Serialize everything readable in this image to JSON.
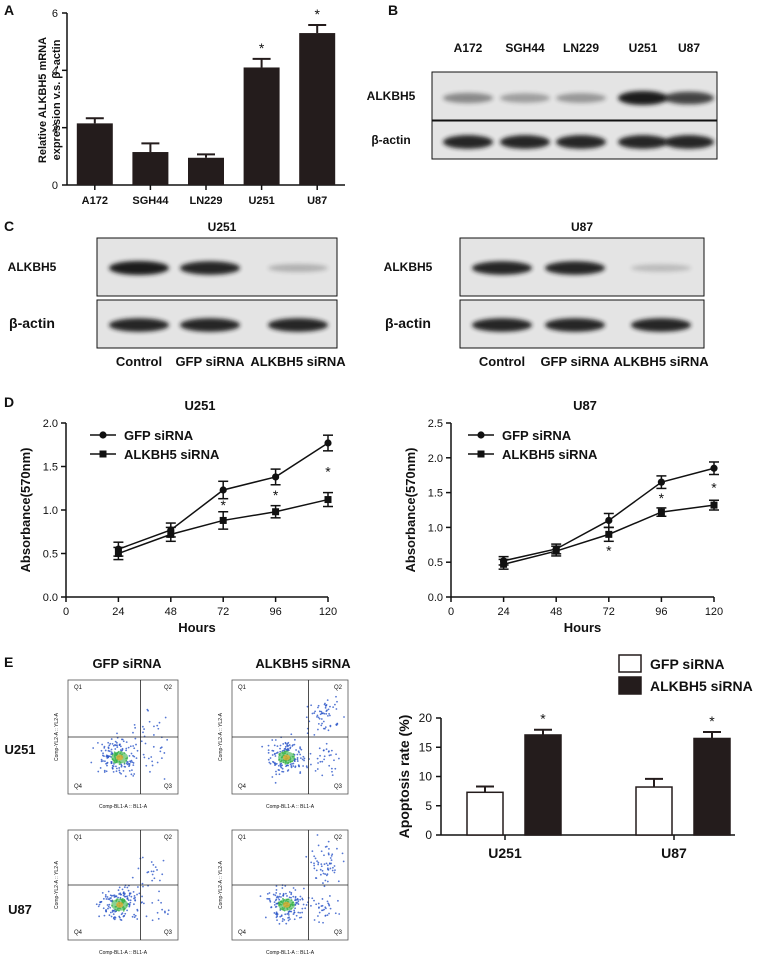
{
  "panels": {
    "a": "A",
    "b": "B",
    "c": "C",
    "d": "D",
    "e": "E"
  },
  "colors": {
    "bar_dark": "#241c1c",
    "blot_bg": "#e4e4e4",
    "band": "#1e1e1e",
    "flow_dot1": "#2b55c8",
    "flow_dot2": "#39b24a",
    "flow_dot3": "#f0a52a"
  },
  "chart_data": [
    {
      "id": "A",
      "type": "bar",
      "categories": [
        "A172",
        "SGH44",
        "LN229",
        "U251",
        "U87"
      ],
      "values": [
        2.15,
        1.15,
        0.95,
        4.1,
        5.3
      ],
      "errors": [
        0.18,
        0.3,
        0.12,
        0.3,
        0.28
      ],
      "significant": [
        false,
        false,
        false,
        true,
        true
      ],
      "ylabel": "Relative ALKBH5 mRNA expression v.s. β -actin",
      "ylim": [
        0,
        6
      ],
      "yticks": [
        0,
        2,
        4,
        6
      ],
      "star": "*"
    },
    {
      "id": "D-U251",
      "type": "line",
      "title": "U251",
      "xlabel": "Hours",
      "ylabel": "Absorbance(570nm)",
      "x": [
        24,
        48,
        72,
        96,
        120
      ],
      "xlim": [
        0,
        120
      ],
      "xticks": [
        0,
        24,
        48,
        72,
        96,
        120
      ],
      "ylim": [
        0,
        2.0
      ],
      "yticks": [
        "0.0",
        "0.5",
        "1.0",
        "1.5",
        "2.0"
      ],
      "series": [
        {
          "name": "GFP siRNA",
          "marker": "circle",
          "values": [
            0.55,
            0.77,
            1.23,
            1.38,
            1.77
          ],
          "errors": [
            0.08,
            0.08,
            0.1,
            0.09,
            0.09
          ]
        },
        {
          "name": "ALKBH5 siRNA",
          "marker": "square",
          "values": [
            0.5,
            0.72,
            0.88,
            0.98,
            1.12
          ],
          "errors": [
            0.07,
            0.08,
            0.1,
            0.07,
            0.08
          ]
        }
      ],
      "star_x": [
        72,
        96,
        120
      ],
      "star": "*"
    },
    {
      "id": "D-U87",
      "type": "line",
      "title": "U87",
      "xlabel": "Hours",
      "ylabel": "Absorbance(570nm)",
      "x": [
        24,
        48,
        72,
        96,
        120
      ],
      "xlim": [
        0,
        120
      ],
      "xticks": [
        0,
        24,
        48,
        72,
        96,
        120
      ],
      "ylim": [
        0,
        2.5
      ],
      "yticks": [
        "0.0",
        "0.5",
        "1.0",
        "1.5",
        "2.0",
        "2.5"
      ],
      "series": [
        {
          "name": "GFP siRNA",
          "marker": "circle",
          "values": [
            0.52,
            0.69,
            1.1,
            1.65,
            1.85
          ],
          "errors": [
            0.06,
            0.07,
            0.1,
            0.09,
            0.09
          ]
        },
        {
          "name": "ALKBH5 siRNA",
          "marker": "square",
          "values": [
            0.47,
            0.66,
            0.9,
            1.22,
            1.32
          ],
          "errors": [
            0.07,
            0.07,
            0.1,
            0.06,
            0.07
          ]
        }
      ],
      "star_x": [
        72,
        96,
        120
      ],
      "star": "*"
    },
    {
      "id": "E-bar",
      "type": "bar",
      "categories": [
        "U251",
        "U87"
      ],
      "series": [
        {
          "name": "GFP siRNA",
          "fill": "white",
          "values": [
            7.3,
            8.2
          ],
          "errors": [
            1.0,
            1.4
          ]
        },
        {
          "name": "ALKBH5 siRNA",
          "fill": "dark",
          "values": [
            17.1,
            16.5
          ],
          "errors": [
            0.9,
            1.1
          ]
        }
      ],
      "ylabel": "Apoptosis rate (%)",
      "ylim": [
        0,
        20
      ],
      "yticks": [
        "0",
        "5",
        "10",
        "15",
        "20"
      ],
      "star": "*"
    }
  ],
  "blot_b": {
    "lanes": [
      "A172",
      "SGH44",
      "LN229",
      "U251",
      "U87"
    ],
    "rows": [
      {
        "label": "ALKBH5",
        "intensity": [
          0.45,
          0.35,
          0.38,
          1.0,
          0.8
        ]
      },
      {
        "label": "β-actin",
        "intensity": [
          0.95,
          0.95,
          0.95,
          0.95,
          0.95
        ]
      }
    ]
  },
  "blot_c": [
    {
      "title": "U251",
      "lanes": [
        "Control",
        "GFP siRNA",
        "ALKBH5 siRNA"
      ],
      "rows": [
        {
          "label": "ALKBH5",
          "intensity": [
            1.0,
            0.95,
            0.25
          ]
        },
        {
          "label": "β-actin",
          "intensity": [
            0.95,
            0.95,
            0.95
          ]
        }
      ]
    },
    {
      "title": "U87",
      "lanes": [
        "Control",
        "GFP siRNA",
        "ALKBH5 siRNA"
      ],
      "rows": [
        {
          "label": "ALKBH5",
          "intensity": [
            0.95,
            0.95,
            0.2
          ]
        },
        {
          "label": "β-actin",
          "intensity": [
            0.95,
            0.95,
            0.95
          ]
        }
      ]
    }
  ],
  "flow": {
    "col_titles": [
      "GFP siRNA",
      "ALKBH5 siRNA"
    ],
    "row_labels": [
      "U251",
      "U87"
    ],
    "quadrants": [
      "Q1",
      "Q2",
      "Q3",
      "Q4"
    ],
    "xaxis": "Comp-BL1-A :: BL1-A",
    "yaxis": "Comp-YL2-A :: YL2-A"
  }
}
